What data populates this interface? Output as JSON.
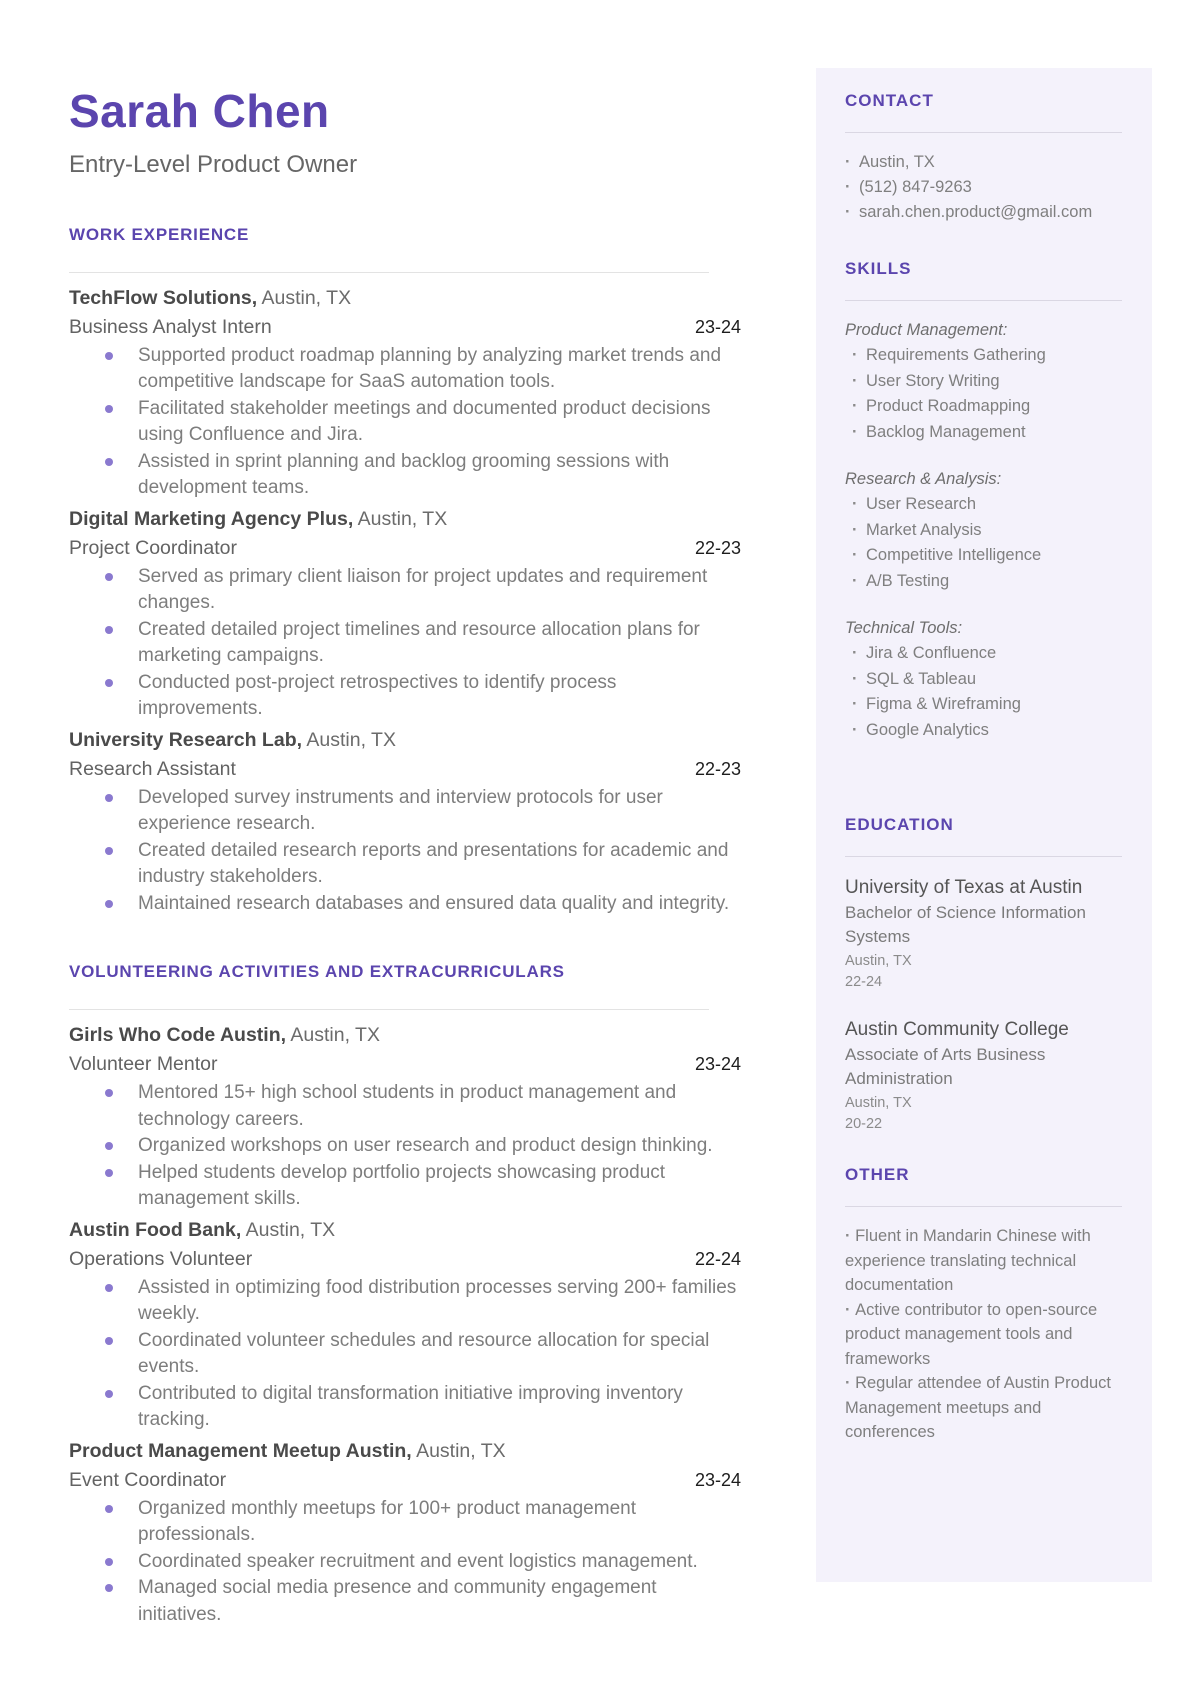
{
  "colors": {
    "accent": "#5b45ae",
    "sidebar_bg": "#f4f2fb",
    "bullet": "#8a79cf",
    "divider": "#e3e3e3",
    "side_divider": "#dad7e3"
  },
  "header": {
    "name": "Sarah Chen",
    "title": "Entry-Level Product Owner"
  },
  "main_sections": [
    {
      "heading": "WORK EXPERIENCE",
      "entries": [
        {
          "company": "TechFlow Solutions,",
          "location": "Austin, TX",
          "role": "Business Analyst Intern",
          "dates": "23-24",
          "bullets": [
            "Supported product roadmap planning by analyzing market trends and competitive landscape for SaaS automation tools.",
            "Facilitated stakeholder meetings and documented product decisions using Confluence and Jira.",
            "Assisted in sprint planning and backlog grooming sessions with development teams."
          ]
        },
        {
          "company": "Digital Marketing Agency Plus,",
          "location": "Austin, TX",
          "role": "Project Coordinator",
          "dates": "22-23",
          "bullets": [
            "Served as primary client liaison for project updates and requirement changes.",
            "Created detailed project timelines and resource allocation plans for marketing campaigns.",
            "Conducted post-project retrospectives to identify process improvements."
          ]
        },
        {
          "company": "University Research Lab,",
          "location": "Austin, TX",
          "role": "Research Assistant",
          "dates": "22-23",
          "bullets": [
            "Developed survey instruments and interview protocols for user experience research.",
            "Created detailed research reports and presentations for academic and industry stakeholders.",
            "Maintained research databases and ensured data quality and integrity."
          ]
        }
      ]
    },
    {
      "heading": "VOLUNTEERING ACTIVITIES AND EXTRACURRICULARS",
      "entries": [
        {
          "company": "Girls Who Code Austin,",
          "location": "Austin, TX",
          "role": "Volunteer Mentor",
          "dates": "23-24",
          "bullets": [
            "Mentored 15+ high school students in product management and technology careers.",
            "Organized workshops on user research and product design thinking.",
            "Helped students develop portfolio projects showcasing product management skills."
          ]
        },
        {
          "company": "Austin Food Bank,",
          "location": "Austin, TX",
          "role": "Operations Volunteer",
          "dates": "22-24",
          "bullets": [
            "Assisted in optimizing food distribution processes serving 200+ families weekly.",
            "Coordinated volunteer schedules and resource allocation for special events.",
            "Contributed to digital transformation initiative improving inventory tracking."
          ]
        },
        {
          "company": "Product Management Meetup Austin,",
          "location": "Austin, TX",
          "role": "Event Coordinator",
          "dates": "23-24",
          "bullets": [
            "Organized monthly meetups for 100+ product management professionals.",
            "Coordinated speaker recruitment and event logistics management.",
            "Managed social media presence and community engagement initiatives."
          ]
        }
      ]
    }
  ],
  "sidebar": {
    "contact": {
      "heading": "CONTACT",
      "items": [
        "Austin, TX",
        "(512) 847-9263",
        "sarah.chen.product@gmail.com"
      ]
    },
    "skills": {
      "heading": "SKILLS",
      "groups": [
        {
          "label": "Product Management:",
          "items": [
            "Requirements Gathering",
            "User Story Writing",
            "Product Roadmapping",
            "Backlog Management"
          ]
        },
        {
          "label": "Research & Analysis:",
          "items": [
            "User Research",
            "Market Analysis",
            "Competitive Intelligence",
            "A/B Testing"
          ]
        },
        {
          "label": "Technical Tools:",
          "items": [
            "Jira & Confluence",
            "SQL & Tableau",
            "Figma & Wireframing",
            "Google Analytics"
          ]
        }
      ]
    },
    "education": {
      "heading": "EDUCATION",
      "schools": [
        {
          "name": "University of Texas at Austin",
          "degree": "Bachelor of Science Information Systems",
          "location": "Austin, TX",
          "dates": "22-24"
        },
        {
          "name": "Austin Community College",
          "degree": "Associate of Arts Business Administration",
          "location": "Austin, TX",
          "dates": "20-22"
        }
      ]
    },
    "other": {
      "heading": "OTHER",
      "items": [
        "Fluent in Mandarin Chinese with experience translating technical documentation",
        "Active contributor to open-source product management tools and frameworks",
        "Regular attendee of Austin Product Management meetups and conferences"
      ]
    }
  }
}
